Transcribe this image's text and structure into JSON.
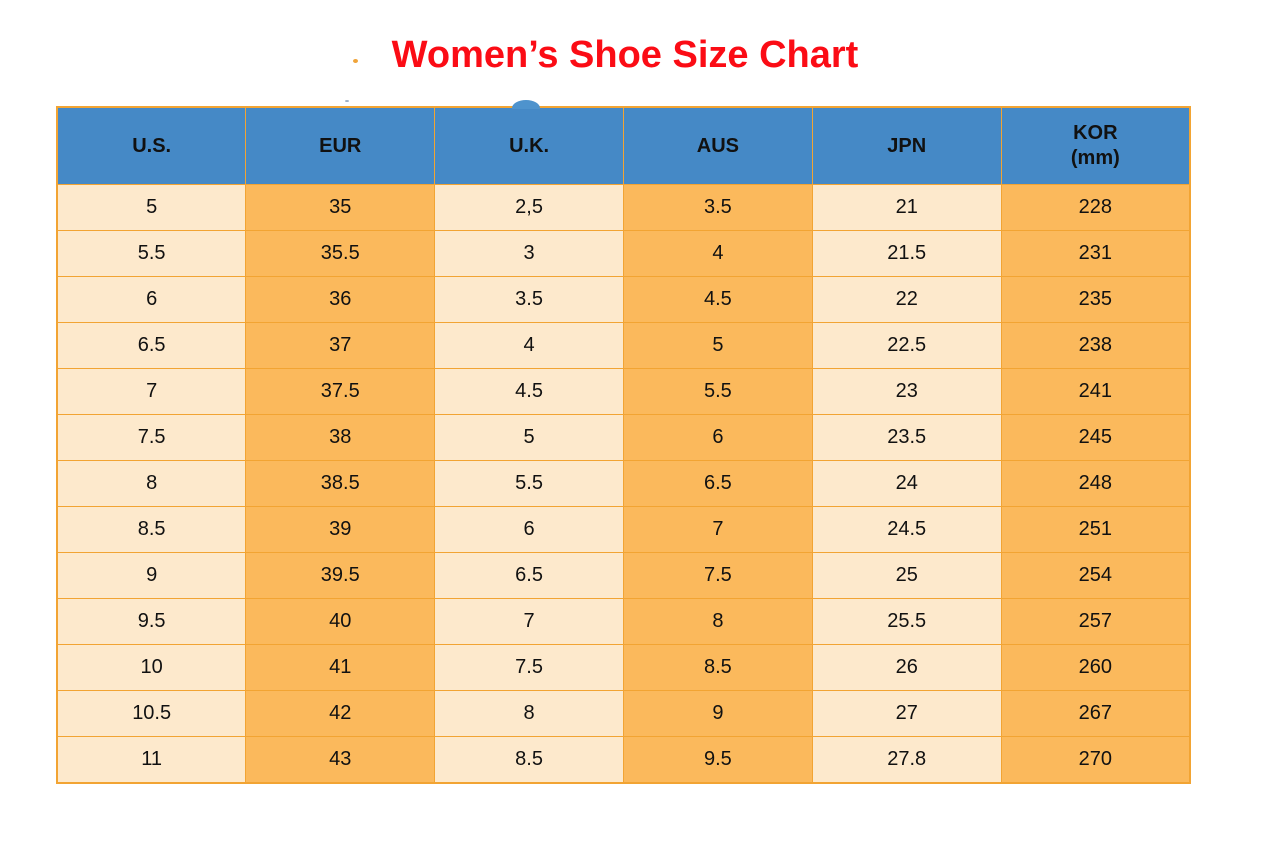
{
  "title": "Women’s Shoe Size Chart",
  "chart_data": {
    "type": "table",
    "title": "Women’s Shoe Size Chart",
    "columns": [
      "U.S.",
      "EUR",
      "U.K.",
      "AUS",
      "JPN",
      "KOR (mm)"
    ],
    "rows": [
      [
        "5",
        "35",
        "2,5",
        "3.5",
        "21",
        "228"
      ],
      [
        "5.5",
        "35.5",
        "3",
        "4",
        "21.5",
        "231"
      ],
      [
        "6",
        "36",
        "3.5",
        "4.5",
        "22",
        "235"
      ],
      [
        "6.5",
        "37",
        "4",
        "5",
        "22.5",
        "238"
      ],
      [
        "7",
        "37.5",
        "4.5",
        "5.5",
        "23",
        "241"
      ],
      [
        "7.5",
        "38",
        "5",
        "6",
        "23.5",
        "245"
      ],
      [
        "8",
        "38.5",
        "5.5",
        "6.5",
        "24",
        "248"
      ],
      [
        "8.5",
        "39",
        "6",
        "7",
        "24.5",
        "251"
      ],
      [
        "9",
        "39.5",
        "6.5",
        "7.5",
        "25",
        "254"
      ],
      [
        "9.5",
        "40",
        "7",
        "8",
        "25.5",
        "257"
      ],
      [
        "10",
        "41",
        "7.5",
        "8.5",
        "26",
        "260"
      ],
      [
        "10.5",
        "42",
        "8",
        "9",
        "27",
        "267"
      ],
      [
        "11",
        "43",
        "8.5",
        "9.5",
        "27.8",
        "270"
      ]
    ]
  },
  "table": {
    "headers": [
      {
        "line1": "U.S."
      },
      {
        "line1": "EUR"
      },
      {
        "line1": "U.K."
      },
      {
        "line1": "AUS"
      },
      {
        "line1": "JPN"
      },
      {
        "line1": "KOR",
        "line2": "(mm)"
      }
    ]
  },
  "colors": {
    "title_red": "#fb0c15",
    "header_blue": "#4589c6",
    "column_cream": "#fde9cc",
    "column_orange": "#fbb95c",
    "grid_border_orange": "#f2a433",
    "cell_text": "#111111"
  }
}
